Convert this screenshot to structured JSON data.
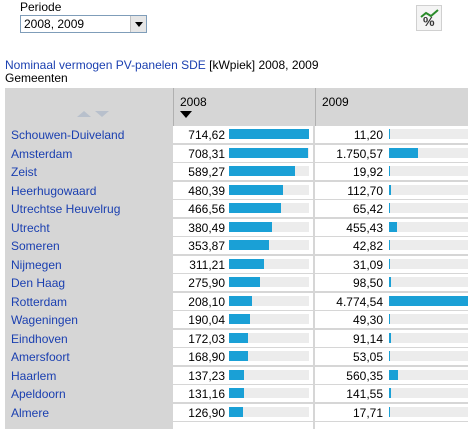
{
  "periode": {
    "label": "Periode",
    "value": "2008, 2009"
  },
  "toolbar": {
    "icon": "percent-chart-icon"
  },
  "title": {
    "link": "Nominaal vermogen PV-panelen SDE",
    "rest": " [kWpiek] 2008, 2009"
  },
  "subtitle": "Gemeenten",
  "columns": {
    "c2008": "2008",
    "c2009": "2009"
  },
  "colors": {
    "bar": "#1aa0d6",
    "link": "#1a3fb0"
  },
  "rows": [
    {
      "name": "Schouwen-Duiveland",
      "v2008": "714,62",
      "v2009": "11,20",
      "n2008": 714.62,
      "n2009": 11.2
    },
    {
      "name": "Amsterdam",
      "v2008": "708,31",
      "v2009": "1.750,57",
      "n2008": 708.31,
      "n2009": 1750.57
    },
    {
      "name": "Zeist",
      "v2008": "589,27",
      "v2009": "19,92",
      "n2008": 589.27,
      "n2009": 19.92
    },
    {
      "name": "Heerhugowaard",
      "v2008": "480,39",
      "v2009": "112,70",
      "n2008": 480.39,
      "n2009": 112.7
    },
    {
      "name": "Utrechtse Heuvelrug",
      "v2008": "466,56",
      "v2009": "65,42",
      "n2008": 466.56,
      "n2009": 65.42
    },
    {
      "name": "Utrecht",
      "v2008": "380,49",
      "v2009": "455,43",
      "n2008": 380.49,
      "n2009": 455.43
    },
    {
      "name": "Someren",
      "v2008": "353,87",
      "v2009": "42,82",
      "n2008": 353.87,
      "n2009": 42.82
    },
    {
      "name": "Nijmegen",
      "v2008": "311,21",
      "v2009": "31,09",
      "n2008": 311.21,
      "n2009": 31.09
    },
    {
      "name": "Den Haag",
      "v2008": "275,90",
      "v2009": "98,50",
      "n2008": 275.9,
      "n2009": 98.5
    },
    {
      "name": "Rotterdam",
      "v2008": "208,10",
      "v2009": "4.774,54",
      "n2008": 208.1,
      "n2009": 4774.54
    },
    {
      "name": "Wageningen",
      "v2008": "190,04",
      "v2009": "49,30",
      "n2008": 190.04,
      "n2009": 49.3
    },
    {
      "name": "Eindhoven",
      "v2008": "172,03",
      "v2009": "91,14",
      "n2008": 172.03,
      "n2009": 91.14
    },
    {
      "name": "Amersfoort",
      "v2008": "168,90",
      "v2009": "53,05",
      "n2008": 168.9,
      "n2009": 53.05
    },
    {
      "name": "Haarlem",
      "v2008": "137,23",
      "v2009": "560,35",
      "n2008": 137.23,
      "n2009": 560.35
    },
    {
      "name": "Apeldoorn",
      "v2008": "131,16",
      "v2009": "141,55",
      "n2008": 131.16,
      "n2009": 141.55
    },
    {
      "name": "Almere",
      "v2008": "126,90",
      "v2009": "17,71",
      "n2008": 126.9,
      "n2009": 17.71
    },
    {
      "name": "",
      "v2008": "",
      "v2009": "",
      "n2008": 0,
      "n2009": 0
    }
  ]
}
